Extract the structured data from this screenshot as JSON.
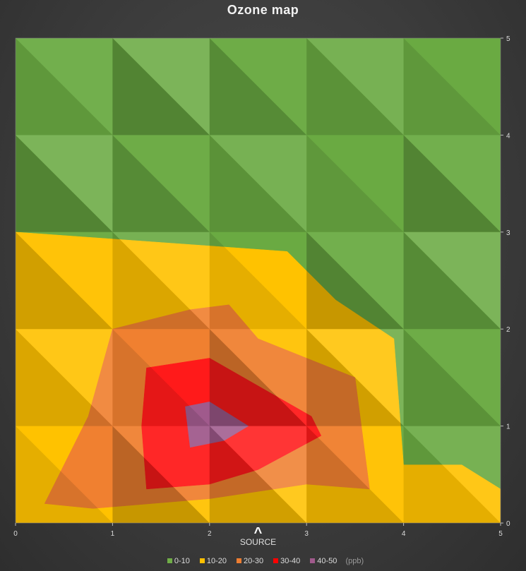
{
  "chart_data": {
    "type": "heatmap",
    "title": "Ozone map",
    "unit": "(ppb)",
    "xlim": [
      0,
      5
    ],
    "ylim": [
      0,
      5
    ],
    "x_ticks": [
      "0",
      "1",
      "2",
      "3",
      "4",
      "5"
    ],
    "y_ticks": [
      "0",
      "1",
      "2",
      "3",
      "4",
      "5"
    ],
    "annotation": {
      "symbol": "^",
      "text": "SOURCE",
      "x": 2.5,
      "y": 0
    },
    "legend": [
      {
        "label": "0-10",
        "color": "#70ad47"
      },
      {
        "label": "10-20",
        "color": "#ffc000"
      },
      {
        "label": "20-30",
        "color": "#ed7d31"
      },
      {
        "label": "30-40",
        "color": "#ff0000"
      },
      {
        "label": "40-50",
        "color": "#a05a8c"
      }
    ],
    "bands": [
      {
        "range": "0-10",
        "color": "#6aaa42",
        "polygons": [
          [
            [
              0,
              5
            ],
            [
              5,
              5
            ],
            [
              5,
              0.35
            ],
            [
              4.6,
              0.6
            ],
            [
              4,
              0.6
            ],
            [
              3.9,
              1.9
            ],
            [
              3.3,
              2.3
            ],
            [
              2.8,
              2.8
            ],
            [
              0,
              3
            ]
          ]
        ]
      },
      {
        "range": "10-20",
        "color": "#ffc200",
        "polygons": [
          [
            [
              0,
              3
            ],
            [
              2.8,
              2.8
            ],
            [
              3.3,
              2.3
            ],
            [
              3.9,
              1.9
            ],
            [
              4,
              0.6
            ],
            [
              4.6,
              0.6
            ],
            [
              5,
              0.35
            ],
            [
              5,
              0
            ],
            [
              0,
              0
            ]
          ]
        ]
      },
      {
        "range": "20-30",
        "color": "#f08030",
        "polygons": [
          [
            [
              1,
              2.0
            ],
            [
              1.8,
              2.2
            ],
            [
              2.2,
              2.25
            ],
            [
              2.5,
              1.9
            ],
            [
              3.5,
              1.5
            ],
            [
              3.65,
              0.35
            ],
            [
              3.0,
              0.4
            ],
            [
              2,
              0.25
            ],
            [
              0.8,
              0.15
            ],
            [
              0.3,
              0.2
            ],
            [
              0.75,
              1.1
            ]
          ]
        ]
      },
      {
        "range": "30-40",
        "color": "#ff1a1a",
        "polygons": [
          [
            [
              1.35,
              1.6
            ],
            [
              2,
              1.7
            ],
            [
              3.05,
              1.1
            ],
            [
              3.15,
              0.9
            ],
            [
              2.5,
              0.55
            ],
            [
              2,
              0.4
            ],
            [
              1.35,
              0.35
            ],
            [
              1.3,
              1.0
            ]
          ]
        ]
      },
      {
        "range": "40-50",
        "color": "#a05a8c",
        "polygons": [
          [
            [
              1.75,
              1.2
            ],
            [
              2,
              1.25
            ],
            [
              2.4,
              1.0
            ],
            [
              2.15,
              0.85
            ],
            [
              1.8,
              0.78
            ]
          ]
        ]
      }
    ]
  },
  "chart_meta": {
    "shading": true
  }
}
